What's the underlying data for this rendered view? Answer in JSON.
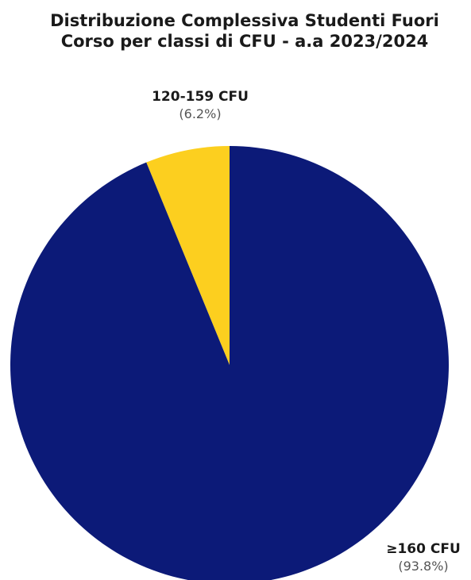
{
  "chart_data": {
    "type": "pie",
    "title_lines": [
      "Distribuzione Complessiva Studenti Fuori",
      "Corso per classi di CFU - a.a 2023/2024"
    ],
    "slices": [
      {
        "label": "120-159 CFU",
        "value": 6.2,
        "value_label": "(6.2%)",
        "color": "#fccf1f"
      },
      {
        "label": "≥160 CFU",
        "value": 93.8,
        "value_label": "(93.8%)",
        "color": "#0c1a78"
      }
    ],
    "start_angle_deg": 0,
    "direction": "counterclockwise",
    "legend": "none"
  }
}
